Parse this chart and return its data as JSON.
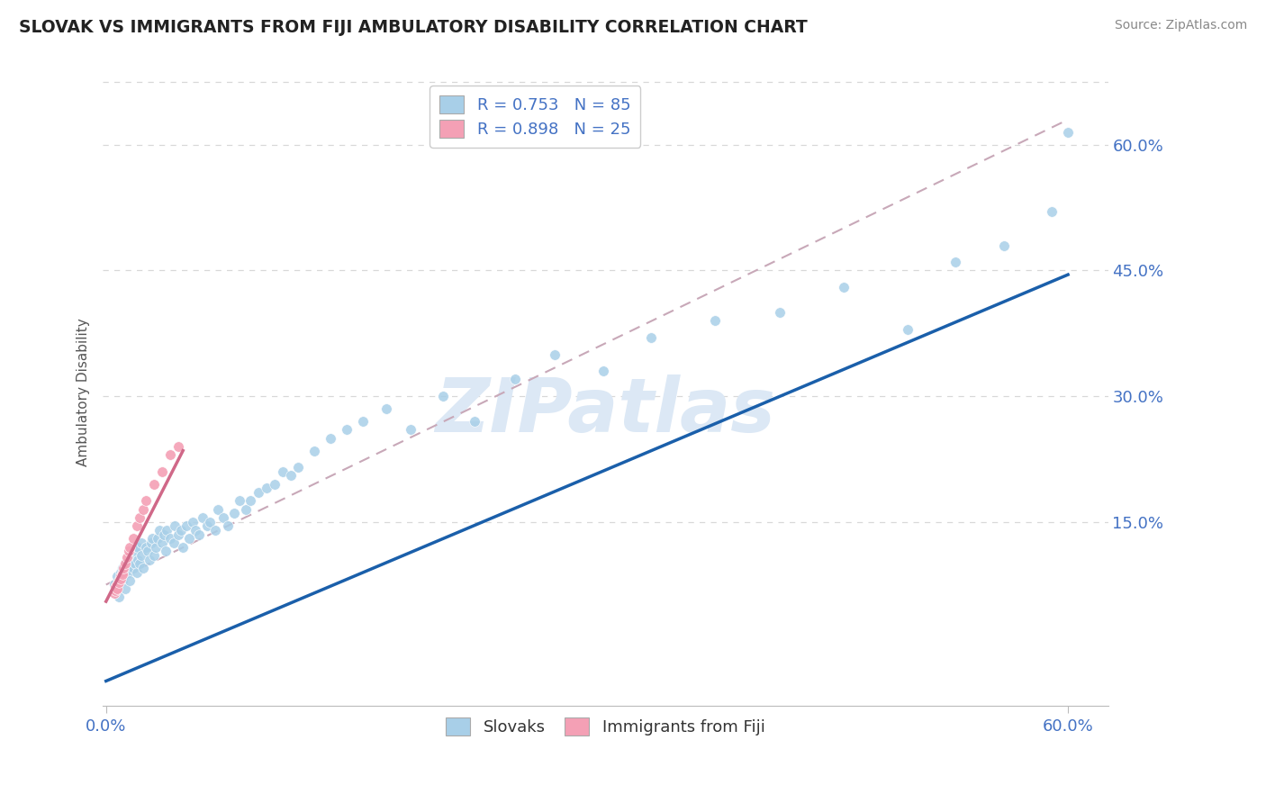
{
  "title": "SLOVAK VS IMMIGRANTS FROM FIJI AMBULATORY DISABILITY CORRELATION CHART",
  "source": "Source: ZipAtlas.com",
  "ylabel": "Ambulatory Disability",
  "ytick_labels": [
    "15.0%",
    "30.0%",
    "45.0%",
    "60.0%"
  ],
  "ytick_positions": [
    0.15,
    0.3,
    0.45,
    0.6
  ],
  "xtick_labels": [
    "0.0%",
    "60.0%"
  ],
  "xtick_positions": [
    0.0,
    0.6
  ],
  "r_slovak": 0.753,
  "n_slovak": 85,
  "r_fiji": 0.898,
  "n_fiji": 25,
  "xlim": [
    -0.002,
    0.625
  ],
  "ylim": [
    -0.07,
    0.68
  ],
  "blue_scatter_color": "#a8cfe8",
  "pink_scatter_color": "#f4a0b5",
  "blue_line_color": "#1a5faa",
  "pink_line_color": "#d06888",
  "dashed_line_color": "#c8a8b8",
  "axis_label_color": "#4472c4",
  "title_color": "#222222",
  "source_color": "#888888",
  "watermark_color": "#dce8f5",
  "grid_color": "#d8d8d8",
  "legend_label_color": "#4472c4",
  "blue_scatter_x": [
    0.005,
    0.007,
    0.008,
    0.009,
    0.01,
    0.01,
    0.011,
    0.012,
    0.012,
    0.013,
    0.014,
    0.015,
    0.015,
    0.016,
    0.017,
    0.018,
    0.018,
    0.019,
    0.02,
    0.02,
    0.021,
    0.022,
    0.022,
    0.023,
    0.025,
    0.026,
    0.027,
    0.028,
    0.029,
    0.03,
    0.031,
    0.032,
    0.033,
    0.035,
    0.036,
    0.037,
    0.038,
    0.04,
    0.042,
    0.043,
    0.045,
    0.047,
    0.048,
    0.05,
    0.052,
    0.054,
    0.056,
    0.058,
    0.06,
    0.063,
    0.065,
    0.068,
    0.07,
    0.073,
    0.076,
    0.08,
    0.083,
    0.087,
    0.09,
    0.095,
    0.1,
    0.105,
    0.11,
    0.115,
    0.12,
    0.13,
    0.14,
    0.15,
    0.16,
    0.175,
    0.19,
    0.21,
    0.23,
    0.255,
    0.28,
    0.31,
    0.34,
    0.38,
    0.42,
    0.46,
    0.5,
    0.53,
    0.56,
    0.59,
    0.6
  ],
  "blue_scatter_y": [
    0.075,
    0.085,
    0.06,
    0.09,
    0.08,
    0.095,
    0.085,
    0.1,
    0.07,
    0.095,
    0.09,
    0.1,
    0.08,
    0.105,
    0.095,
    0.1,
    0.115,
    0.09,
    0.105,
    0.12,
    0.1,
    0.11,
    0.125,
    0.095,
    0.12,
    0.115,
    0.105,
    0.125,
    0.13,
    0.11,
    0.12,
    0.13,
    0.14,
    0.125,
    0.135,
    0.115,
    0.14,
    0.13,
    0.125,
    0.145,
    0.135,
    0.14,
    0.12,
    0.145,
    0.13,
    0.15,
    0.14,
    0.135,
    0.155,
    0.145,
    0.15,
    0.14,
    0.165,
    0.155,
    0.145,
    0.16,
    0.175,
    0.165,
    0.175,
    0.185,
    0.19,
    0.195,
    0.21,
    0.205,
    0.215,
    0.235,
    0.25,
    0.26,
    0.27,
    0.285,
    0.26,
    0.3,
    0.27,
    0.32,
    0.35,
    0.33,
    0.37,
    0.39,
    0.4,
    0.43,
    0.38,
    0.46,
    0.48,
    0.52,
    0.615
  ],
  "pink_scatter_x": [
    0.005,
    0.006,
    0.006,
    0.007,
    0.007,
    0.008,
    0.008,
    0.009,
    0.009,
    0.01,
    0.01,
    0.011,
    0.012,
    0.013,
    0.014,
    0.015,
    0.017,
    0.019,
    0.021,
    0.023,
    0.025,
    0.03,
    0.035,
    0.04,
    0.045
  ],
  "pink_scatter_y": [
    0.065,
    0.072,
    0.068,
    0.075,
    0.07,
    0.08,
    0.078,
    0.085,
    0.082,
    0.09,
    0.087,
    0.095,
    0.1,
    0.108,
    0.115,
    0.12,
    0.13,
    0.145,
    0.155,
    0.165,
    0.175,
    0.195,
    0.21,
    0.23,
    0.24
  ],
  "blue_line_x": [
    0.0,
    0.6
  ],
  "blue_line_y": [
    -0.04,
    0.445
  ],
  "pink_line_x": [
    0.0,
    0.048
  ],
  "pink_line_y": [
    0.055,
    0.235
  ],
  "dash_line_x": [
    0.0,
    0.6
  ],
  "dash_line_y": [
    0.075,
    0.63
  ]
}
